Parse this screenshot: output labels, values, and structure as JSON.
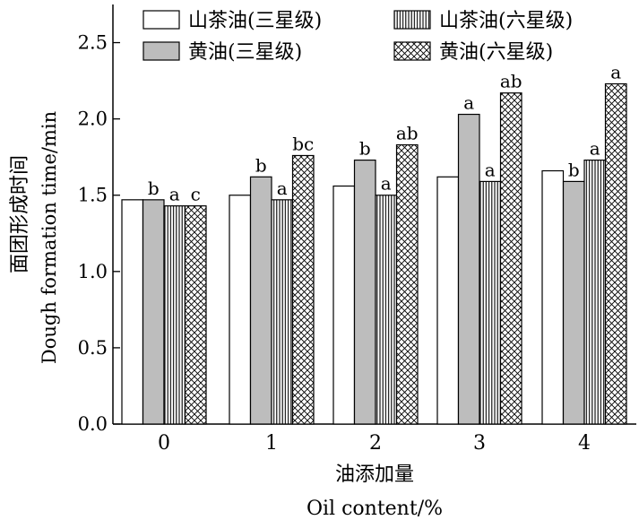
{
  "chart_data": {
    "type": "bar",
    "categories": [
      "0",
      "1",
      "2",
      "3",
      "4"
    ],
    "series": [
      {
        "name": "山茶油(三星级)",
        "pattern": "white",
        "values": [
          1.47,
          1.5,
          1.56,
          1.62,
          1.66
        ],
        "labels": [
          "",
          "",
          "",
          "",
          ""
        ]
      },
      {
        "name": "黄油(三星级)",
        "pattern": "gray",
        "values": [
          1.47,
          1.62,
          1.73,
          2.03,
          1.59
        ],
        "labels": [
          "b",
          "b",
          "b",
          "a",
          "b"
        ]
      },
      {
        "name": "山茶油(六星级)",
        "pattern": "vertical-lines",
        "values": [
          1.43,
          1.47,
          1.5,
          1.59,
          1.73
        ],
        "labels": [
          "a",
          "a",
          "a",
          "a",
          "a"
        ]
      },
      {
        "name": "黄油(六星级)",
        "pattern": "crosshatch",
        "values": [
          1.43,
          1.76,
          1.83,
          2.17,
          2.23
        ],
        "labels": [
          "c",
          "bc",
          "ab",
          "ab",
          "a"
        ]
      }
    ],
    "ylim": [
      0,
      2.75
    ],
    "yticks": [
      "0.0",
      "0.5",
      "1.0",
      "1.5",
      "2.0",
      "2.5"
    ],
    "ylabel_cn": "面团形成时间",
    "ylabel_en": "Dough formation time/min",
    "xlabel_cn": "油添加量",
    "xlabel_en": "Oil content/%",
    "legend": "top",
    "grid": false,
    "colors": {
      "gray": "#bdbdbd",
      "line": "#000000",
      "fill": "#ffffff"
    }
  }
}
